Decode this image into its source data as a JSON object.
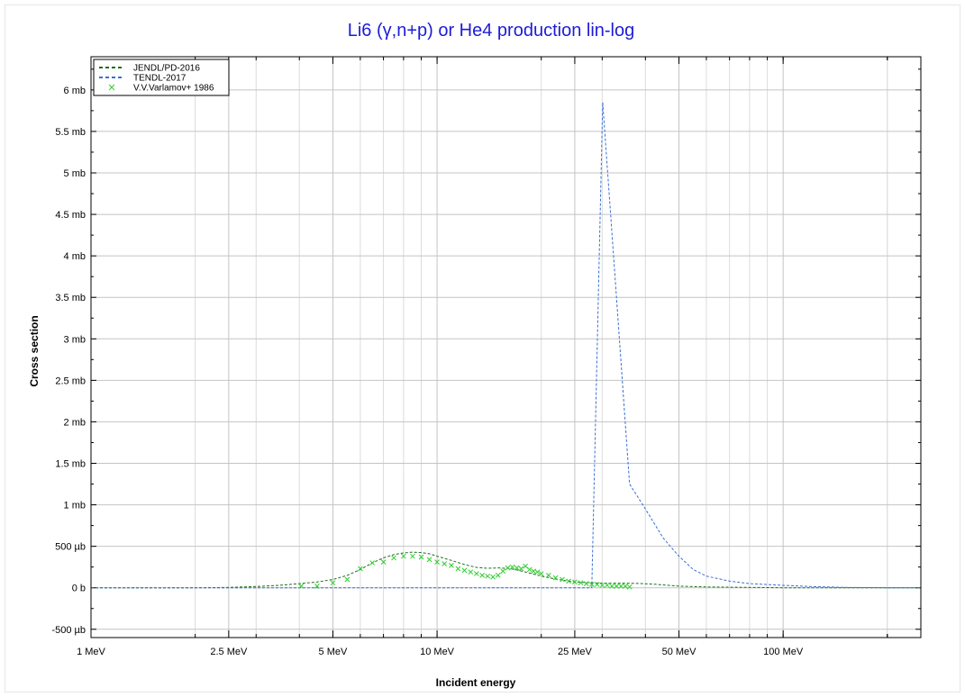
{
  "chart_data": {
    "type": "line",
    "title": "Li6 (γ,n+p) or He4 production lin-log",
    "xlabel": "Incident energy",
    "ylabel": "Cross section",
    "x_scale": "log",
    "x_unit": "MeV",
    "y_unit": "mb",
    "xlim": [
      1,
      250
    ],
    "ylim": [
      -0.6,
      6.4
    ],
    "grid": true,
    "legend_position": "top-left",
    "x_tick_labels": [
      {
        "value": 1,
        "label": "1 MeV"
      },
      {
        "value": 2.5,
        "label": "2.5 MeV"
      },
      {
        "value": 5,
        "label": "5 MeV"
      },
      {
        "value": 10,
        "label": "10 MeV"
      },
      {
        "value": 25,
        "label": "25 MeV"
      },
      {
        "value": 50,
        "label": "50 MeV"
      },
      {
        "value": 100,
        "label": "100 MeV"
      }
    ],
    "y_tick_labels": [
      {
        "value": -0.5,
        "label": "-500 µb"
      },
      {
        "value": 0,
        "label": "0 b"
      },
      {
        "value": 0.5,
        "label": "500 µb"
      },
      {
        "value": 1,
        "label": "1 mb"
      },
      {
        "value": 1.5,
        "label": "1.5 mb"
      },
      {
        "value": 2,
        "label": "2 mb"
      },
      {
        "value": 2.5,
        "label": "2.5 mb"
      },
      {
        "value": 3,
        "label": "3 mb"
      },
      {
        "value": 3.5,
        "label": "3.5 mb"
      },
      {
        "value": 4,
        "label": "4 mb"
      },
      {
        "value": 4.5,
        "label": "4.5 mb"
      },
      {
        "value": 5,
        "label": "5 mb"
      },
      {
        "value": 5.5,
        "label": "5.5 mb"
      },
      {
        "value": 6,
        "label": "6 mb"
      }
    ],
    "series": [
      {
        "name": "JENDL/PD-2016",
        "kind": "line",
        "style": "dashed",
        "color": "#1a6e1a",
        "x": [
          1,
          1.5,
          2,
          2.5,
          3,
          3.5,
          4,
          4.5,
          5,
          5.5,
          6,
          6.5,
          7,
          7.5,
          8,
          8.5,
          9,
          9.5,
          10,
          11,
          12,
          13,
          14,
          15,
          16,
          17,
          18,
          19,
          20,
          22,
          24,
          26,
          28,
          30,
          32,
          35,
          38,
          42,
          50,
          60,
          80,
          100,
          150,
          250
        ],
        "y": [
          0.0,
          0.0,
          0.0,
          0.005,
          0.015,
          0.03,
          0.05,
          0.07,
          0.1,
          0.15,
          0.22,
          0.3,
          0.36,
          0.4,
          0.42,
          0.43,
          0.425,
          0.41,
          0.38,
          0.33,
          0.28,
          0.245,
          0.235,
          0.24,
          0.235,
          0.215,
          0.19,
          0.165,
          0.14,
          0.105,
          0.08,
          0.065,
          0.06,
          0.055,
          0.055,
          0.055,
          0.052,
          0.045,
          0.02,
          0.01,
          0.005,
          0.0,
          0.0,
          0.0
        ]
      },
      {
        "name": "TENDL-2017",
        "kind": "line",
        "style": "dashed",
        "color": "#3b6fd4",
        "x": [
          1,
          5,
          10,
          20,
          28,
          30.1,
          33,
          36,
          40,
          45,
          50,
          55,
          60,
          70,
          80,
          100,
          120,
          150,
          200,
          250
        ],
        "y": [
          0.0,
          0.0,
          0.0,
          0.0,
          0.0,
          5.85,
          3.5,
          1.25,
          0.95,
          0.6,
          0.38,
          0.22,
          0.14,
          0.08,
          0.05,
          0.03,
          0.015,
          0.005,
          0.0,
          0.0
        ]
      },
      {
        "name": "V.V.Varlamov+ 1986",
        "kind": "scatter",
        "marker": "x",
        "color": "#2fcc2f",
        "x": [
          4.05,
          4.5,
          5.0,
          5.5,
          6.0,
          6.5,
          7.0,
          7.5,
          8.0,
          8.5,
          9.0,
          9.5,
          10.0,
          10.5,
          11.0,
          11.5,
          12.0,
          12.5,
          13.0,
          13.5,
          14.0,
          14.5,
          15.0,
          15.5,
          16.0,
          16.5,
          17.0,
          17.5,
          18.0,
          18.5,
          19.0,
          19.5,
          20.0,
          21.0,
          22.0,
          23.0,
          24.0,
          25.0,
          26.0,
          27.0,
          28.0,
          29.0,
          30.0,
          31.0,
          32.0,
          33.0,
          34.0,
          35.0,
          36.0
        ],
        "y": [
          0.02,
          0.02,
          0.06,
          0.1,
          0.23,
          0.3,
          0.31,
          0.36,
          0.38,
          0.38,
          0.37,
          0.34,
          0.31,
          0.29,
          0.27,
          0.23,
          0.21,
          0.19,
          0.17,
          0.15,
          0.14,
          0.13,
          0.15,
          0.2,
          0.24,
          0.25,
          0.24,
          0.23,
          0.26,
          0.22,
          0.2,
          0.19,
          0.17,
          0.15,
          0.12,
          0.1,
          0.08,
          0.07,
          0.06,
          0.05,
          0.04,
          0.04,
          0.03,
          0.03,
          0.02,
          0.02,
          0.02,
          0.02,
          0.01
        ]
      }
    ]
  }
}
